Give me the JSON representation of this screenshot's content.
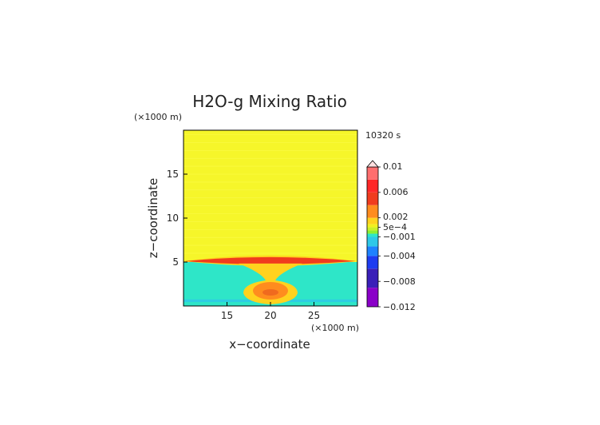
{
  "chart_data": {
    "type": "heatmap",
    "title": "H2O-g Mixing Ratio",
    "time_label": "10320 s",
    "xlabel": "x−coordinate",
    "ylabel": "z−coordinate",
    "x_unit": "(×1000 m)",
    "y_unit": "(×1000 m)",
    "xlim": [
      10,
      30
    ],
    "ylim": [
      0,
      20
    ],
    "x_ticks": [
      {
        "value": 15,
        "label": "15"
      },
      {
        "value": 20,
        "label": "20"
      },
      {
        "value": 25,
        "label": "25"
      }
    ],
    "y_ticks": [
      {
        "value": 5,
        "label": "5"
      },
      {
        "value": 10,
        "label": "10"
      },
      {
        "value": 15,
        "label": "15"
      }
    ],
    "field_regions": [
      {
        "name": "upper-background",
        "value": 0.0003,
        "z_range": [
          5,
          20
        ]
      },
      {
        "name": "lower-background",
        "value": -0.0008,
        "z_range": [
          0,
          5
        ]
      },
      {
        "name": "moist-layer-core",
        "value": 0.004,
        "x_center": 20,
        "z_center": 5.1
      },
      {
        "name": "lower-plume",
        "value": 0.002,
        "x_center": 20,
        "z_center": 2.0
      },
      {
        "name": "surface-band",
        "value": -0.002,
        "z_center": 0.6
      }
    ],
    "colorbar": {
      "min": -0.012,
      "max": 0.01,
      "extend": "max",
      "labels": [
        {
          "value": 0.01,
          "label": "0.01"
        },
        {
          "value": 0.006,
          "label": "0.006"
        },
        {
          "value": 0.002,
          "label": "0.002"
        },
        {
          "value": 0.0005,
          "label": "5e−4"
        },
        {
          "value": -0.001,
          "label": "−0.001"
        },
        {
          "value": -0.004,
          "label": "−0.004"
        },
        {
          "value": -0.008,
          "label": "−0.008"
        },
        {
          "value": -0.012,
          "label": "−0.012"
        }
      ],
      "stops": [
        {
          "value": -0.012,
          "color": "#8a00c8"
        },
        {
          "value": -0.009,
          "color": "#3a1fb8"
        },
        {
          "value": -0.006,
          "color": "#1e3cf0"
        },
        {
          "value": -0.004,
          "color": "#1e82ff"
        },
        {
          "value": -0.0025,
          "color": "#2ec8e8"
        },
        {
          "value": -0.001,
          "color": "#2ee6c8"
        },
        {
          "value": -0.0005,
          "color": "#8cf032"
        },
        {
          "value": 0,
          "color": "#c8f028"
        },
        {
          "value": 0.0005,
          "color": "#f0f01e"
        },
        {
          "value": 0.001,
          "color": "#ffd21e"
        },
        {
          "value": 0.002,
          "color": "#ff8c1e"
        },
        {
          "value": 0.004,
          "color": "#f03c1e"
        },
        {
          "value": 0.006,
          "color": "#ff2828"
        },
        {
          "value": 0.008,
          "color": "#ff6e6e"
        },
        {
          "value": 0.01,
          "color": "#ffb4b4"
        }
      ]
    }
  }
}
